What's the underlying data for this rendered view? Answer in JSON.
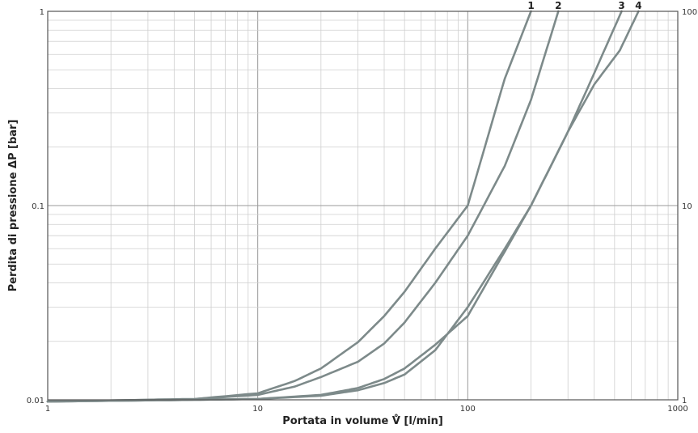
{
  "chart_data": {
    "type": "line",
    "xlabel": "Portata in volume V̊ [l/min]",
    "ylabel": "Perdita di pressione ΔP  [bar]",
    "xscale": "log",
    "yscale": "log",
    "xlim": [
      1,
      1000
    ],
    "ylim": [
      0.01,
      1
    ],
    "y2lim": [
      1,
      100
    ],
    "grid": true,
    "x_ticks": [
      "1",
      "10",
      "100",
      "1000"
    ],
    "y_ticks": [
      "0.01",
      "0.1",
      "1"
    ],
    "y_tick_values": [
      0.01,
      0.1,
      1
    ],
    "y2_ticks": [
      "1",
      "10",
      "100"
    ],
    "y2_tick_values": [
      0.01,
      0.1,
      1
    ],
    "series": [
      {
        "name": "1",
        "x": [
          1,
          5,
          10,
          15,
          20,
          30,
          40,
          50,
          70,
          100,
          150,
          200
        ],
        "y": [
          0.0098,
          0.0101,
          0.0108,
          0.0125,
          0.0145,
          0.0198,
          0.027,
          0.036,
          0.06,
          0.1,
          0.45,
          1.0
        ]
      },
      {
        "name": "2",
        "x": [
          1,
          5,
          10,
          15,
          20,
          30,
          40,
          50,
          70,
          100,
          150,
          200,
          270
        ],
        "y": [
          0.0098,
          0.0101,
          0.0106,
          0.0117,
          0.0131,
          0.0157,
          0.0195,
          0.025,
          0.04,
          0.07,
          0.16,
          0.35,
          1.0
        ]
      },
      {
        "name": "3",
        "x": [
          1,
          5,
          10,
          20,
          30,
          40,
          50,
          70,
          100,
          150,
          200,
          300,
          400,
          540
        ],
        "y": [
          0.0098,
          0.01,
          0.0101,
          0.0106,
          0.0115,
          0.0128,
          0.0145,
          0.0192,
          0.027,
          0.058,
          0.1,
          0.24,
          0.48,
          1.0
        ]
      },
      {
        "name": "4",
        "x": [
          1,
          5,
          10,
          20,
          30,
          40,
          50,
          70,
          100,
          150,
          200,
          300,
          400,
          530,
          650
        ],
        "y": [
          0.0098,
          0.01,
          0.0101,
          0.0105,
          0.0112,
          0.0122,
          0.0135,
          0.018,
          0.03,
          0.06,
          0.1,
          0.24,
          0.42,
          0.63,
          1.0
        ]
      }
    ]
  },
  "colors": {
    "curve": "#7d8a8a",
    "grid_minor": "#cfcfcf",
    "grid_major": "#9a9a9a",
    "frame": "#555555"
  }
}
